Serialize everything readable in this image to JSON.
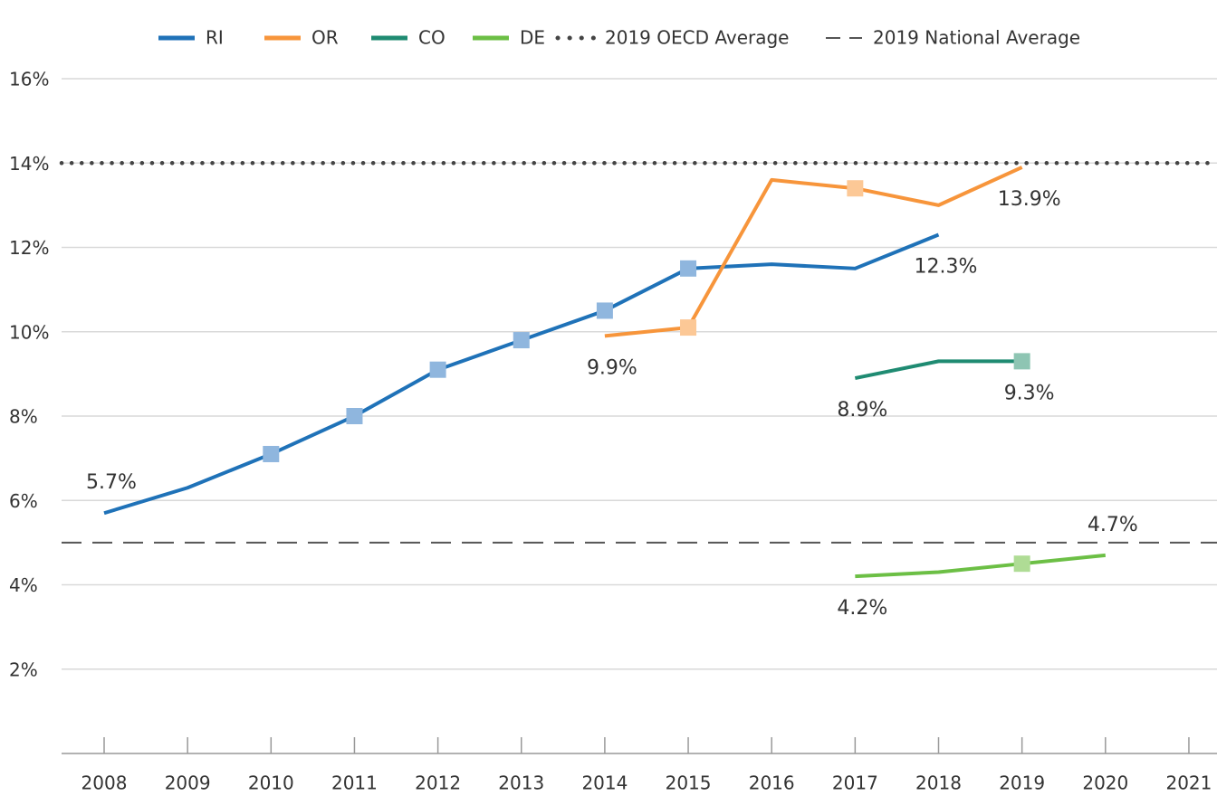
{
  "chart_data": {
    "type": "line",
    "categories": [
      "2008",
      "2009",
      "2010",
      "2011",
      "2012",
      "2013",
      "2014",
      "2015",
      "2016",
      "2017",
      "2018",
      "2019",
      "2020",
      "2021"
    ],
    "series": [
      {
        "name": "RI",
        "color": "#1f72b8",
        "marker_color": "#8fb6de",
        "values": [
          5.7,
          6.3,
          7.1,
          8.0,
          9.1,
          9.8,
          10.5,
          11.5,
          11.6,
          11.5,
          12.3,
          null,
          null,
          null
        ],
        "markers": [
          false,
          false,
          true,
          true,
          true,
          true,
          true,
          true,
          false,
          false,
          false,
          false,
          false,
          false
        ],
        "value_labels": [
          "5.7%",
          null,
          null,
          null,
          null,
          null,
          null,
          null,
          null,
          null,
          "12.3%",
          null,
          null,
          null
        ]
      },
      {
        "name": "OR",
        "color": "#f7953b",
        "marker_color": "#fcc896",
        "values": [
          null,
          null,
          null,
          null,
          null,
          null,
          9.9,
          10.1,
          13.6,
          13.4,
          13.0,
          13.9,
          null,
          null
        ],
        "markers": [
          false,
          false,
          false,
          false,
          false,
          false,
          false,
          true,
          false,
          true,
          false,
          false,
          false,
          false
        ],
        "value_labels": [
          null,
          null,
          null,
          null,
          null,
          null,
          "9.9%",
          null,
          null,
          null,
          null,
          "13.9%",
          null,
          null
        ]
      },
      {
        "name": "CO",
        "color": "#1f8b72",
        "marker_color": "#8ec5b3",
        "values": [
          null,
          null,
          null,
          null,
          null,
          null,
          null,
          null,
          null,
          8.9,
          9.3,
          9.3,
          null,
          null
        ],
        "markers": [
          false,
          false,
          false,
          false,
          false,
          false,
          false,
          false,
          false,
          false,
          false,
          true,
          false,
          false
        ],
        "value_labels": [
          null,
          null,
          null,
          null,
          null,
          null,
          null,
          null,
          null,
          "8.9%",
          null,
          "9.3%",
          null,
          null
        ]
      },
      {
        "name": "DE",
        "color": "#6cbf45",
        "marker_color": "#afdc95",
        "values": [
          null,
          null,
          null,
          null,
          null,
          null,
          null,
          null,
          null,
          4.2,
          4.3,
          4.5,
          4.7,
          null
        ],
        "markers": [
          false,
          false,
          false,
          false,
          false,
          false,
          false,
          false,
          false,
          false,
          false,
          true,
          false,
          false
        ],
        "value_labels": [
          null,
          null,
          null,
          null,
          null,
          null,
          null,
          null,
          null,
          "4.2%",
          null,
          null,
          "4.7%",
          null
        ]
      }
    ],
    "reference_lines": [
      {
        "name": "2019 OECD Average",
        "value": 14,
        "style": "dotted",
        "color": "#444444"
      },
      {
        "name": "2019 National Average",
        "value": 5,
        "style": "dashed",
        "color": "#555555"
      }
    ],
    "ylim": [
      0,
      16
    ],
    "yticks": [
      {
        "value": 2,
        "label": "2%"
      },
      {
        "value": 4,
        "label": "4%"
      },
      {
        "value": 6,
        "label": "6%"
      },
      {
        "value": 8,
        "label": "8%"
      },
      {
        "value": 10,
        "label": "10%"
      },
      {
        "value": 12,
        "label": "12%"
      },
      {
        "value": 14,
        "label": "14%"
      },
      {
        "value": 16,
        "label": "16%"
      }
    ],
    "grid": true,
    "legend": "top"
  }
}
